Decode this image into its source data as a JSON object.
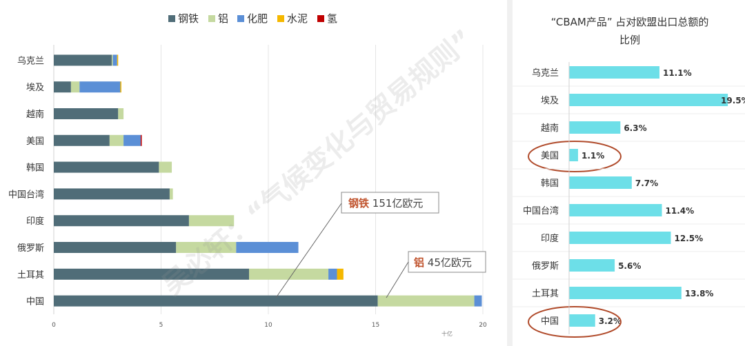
{
  "left_chart": {
    "chart_data": {
      "type": "bar",
      "orientation": "horizontal",
      "stacked": true,
      "categories": [
        "乌克兰",
        "埃及",
        "越南",
        "美国",
        "韩国",
        "中国台湾",
        "印度",
        "俄罗斯",
        "土耳其",
        "中国"
      ],
      "series": [
        {
          "name": "钢铁",
          "color": "#506d78",
          "values": [
            2.7,
            0.8,
            3.0,
            2.6,
            4.9,
            5.4,
            6.3,
            5.7,
            9.1,
            15.1
          ]
        },
        {
          "name": "铝",
          "color": "#c5d9a0",
          "values": [
            0.05,
            0.4,
            0.25,
            0.65,
            0.6,
            0.15,
            2.1,
            2.8,
            3.7,
            4.5
          ]
        },
        {
          "name": "化肥",
          "color": "#5b8fd6",
          "values": [
            0.2,
            1.9,
            0.0,
            0.8,
            0.0,
            0.0,
            0.0,
            2.9,
            0.4,
            0.35
          ]
        },
        {
          "name": "水泥",
          "color": "#f5b800",
          "values": [
            0.05,
            0.05,
            0.0,
            0.0,
            0.0,
            0.0,
            0.0,
            0.0,
            0.3,
            0.0
          ]
        },
        {
          "name": "氢",
          "color": "#c00000",
          "values": [
            0.0,
            0.0,
            0.0,
            0.05,
            0.0,
            0.0,
            0.0,
            0.0,
            0.0,
            0.0
          ]
        }
      ],
      "xlim": [
        0,
        20
      ],
      "xticks": [
        "0",
        "5",
        "10",
        "15",
        "20"
      ],
      "unit": "十亿",
      "legend_position": "top"
    },
    "callouts": [
      {
        "bold": "钢铁",
        "rest": " 151亿欧元"
      },
      {
        "bold": "铝",
        "rest": " 45亿欧元"
      }
    ]
  },
  "right_chart": {
    "title_line1": "“CBAM产品” 占对欧盟出口总额的",
    "title_line2": "比例",
    "chart_data": {
      "type": "bar",
      "orientation": "horizontal",
      "categories": [
        "乌克兰",
        "埃及",
        "越南",
        "美国",
        "韩国",
        "中国台湾",
        "印度",
        "俄罗斯",
        "土耳其",
        "中国"
      ],
      "values": [
        11.1,
        19.5,
        6.3,
        1.1,
        7.7,
        11.4,
        12.5,
        5.6,
        13.8,
        3.2
      ],
      "labels": [
        "11.1%",
        "19.5%",
        "6.3%",
        "1.1%",
        "7.7%",
        "11.4%",
        "12.5%",
        "5.6%",
        "13.8%",
        "3.2%"
      ],
      "color": "#6ddfe8",
      "xlim": [
        0,
        20
      ],
      "circled": [
        "美国",
        "中国"
      ]
    }
  },
  "watermark": "吴必轩：“气候变化与贸易规则”"
}
